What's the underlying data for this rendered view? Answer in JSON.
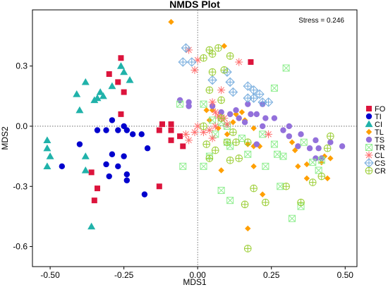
{
  "chart_data": {
    "type": "scatter",
    "title": "NMDS Plot",
    "xlabel": "MDS1",
    "ylabel": "MDS2",
    "annotation": "Stress = 0.246",
    "xlim": [
      -0.56,
      0.54
    ],
    "ylim": [
      -0.7,
      0.58
    ],
    "xticks": [
      -0.5,
      -0.25,
      0.0,
      0.25,
      0.5
    ],
    "xtick_labels": [
      "-0.50",
      "-0.25",
      "0.00",
      "0.25",
      "0.50"
    ],
    "yticks": [
      -0.6,
      -0.3,
      0.0,
      0.3
    ],
    "ytick_labels": [
      "-0.6",
      "-0.3",
      "0.0",
      "0.3"
    ],
    "reference_lines": {
      "x": 0,
      "y": 0,
      "style": "dotted"
    },
    "grid": false,
    "legend_position": "right",
    "series": [
      {
        "name": "FO",
        "color": "#dc143c",
        "marker": "square",
        "points": [
          [
            -0.26,
            0.34
          ],
          [
            0.18,
            0.32
          ],
          [
            -0.3,
            0.26
          ],
          [
            -0.27,
            0.22
          ],
          [
            -0.25,
            0.17
          ],
          [
            -0.26,
            0.06
          ],
          [
            -0.12,
            0.01
          ],
          [
            -0.09,
            0.01
          ],
          [
            -0.13,
            -0.02
          ],
          [
            -0.09,
            -0.02
          ],
          [
            -0.06,
            -0.05
          ],
          [
            -0.09,
            -0.07
          ],
          [
            -0.05,
            -0.1
          ],
          [
            -0.36,
            -0.23
          ],
          [
            -0.34,
            -0.31
          ],
          [
            -0.35,
            -0.37
          ],
          [
            -0.13,
            -0.3
          ]
        ]
      },
      {
        "name": "TI",
        "color": "#0000cd",
        "marker": "circle",
        "points": [
          [
            -0.46,
            -0.2
          ],
          [
            -0.4,
            -0.09
          ],
          [
            -0.34,
            -0.02
          ],
          [
            -0.31,
            -0.02
          ],
          [
            -0.29,
            0.03
          ],
          [
            -0.27,
            -0.02
          ],
          [
            -0.25,
            0.0
          ],
          [
            -0.24,
            -0.02
          ],
          [
            -0.22,
            -0.04
          ],
          [
            -0.19,
            -0.04
          ],
          [
            -0.17,
            -0.11
          ],
          [
            -0.29,
            -0.14
          ],
          [
            -0.25,
            -0.15
          ],
          [
            -0.31,
            -0.19
          ],
          [
            -0.27,
            -0.2
          ],
          [
            -0.24,
            -0.24
          ],
          [
            -0.3,
            -0.25
          ],
          [
            -0.24,
            -0.27
          ],
          [
            -0.18,
            -0.34
          ]
        ]
      },
      {
        "name": "CI",
        "color": "#20b2aa",
        "marker": "triangle",
        "points": [
          [
            -0.26,
            0.3
          ],
          [
            -0.25,
            0.27
          ],
          [
            -0.23,
            0.23
          ],
          [
            -0.38,
            0.22
          ],
          [
            -0.29,
            0.2
          ],
          [
            -0.33,
            0.17
          ],
          [
            -0.41,
            0.16
          ],
          [
            -0.35,
            0.13
          ],
          [
            -0.32,
            0.15
          ],
          [
            -0.34,
            0.14
          ],
          [
            -0.4,
            0.08
          ],
          [
            -0.51,
            -0.07
          ],
          [
            -0.51,
            -0.11
          ],
          [
            -0.5,
            -0.15
          ],
          [
            -0.38,
            -0.15
          ],
          [
            -0.51,
            -0.2
          ],
          [
            -0.38,
            -0.22
          ],
          [
            -0.36,
            -0.5
          ]
        ]
      },
      {
        "name": "TL",
        "color": "#ff9f00",
        "marker": "diamond",
        "points": [
          [
            -0.09,
            0.52
          ],
          [
            0.03,
            0.08
          ],
          [
            0.05,
            0.08
          ],
          [
            0.13,
            0.06
          ],
          [
            0.15,
            0.07
          ],
          [
            0.16,
            0.03
          ],
          [
            0.12,
            0.02
          ],
          [
            0.19,
            -0.01
          ],
          [
            0.04,
            0.03
          ],
          [
            0.07,
            -0.01
          ],
          [
            0.1,
            -0.04
          ],
          [
            0.17,
            -0.09
          ],
          [
            0.19,
            -0.1
          ],
          [
            0.21,
            -0.1
          ],
          [
            0.19,
            -0.2
          ],
          [
            0.32,
            -0.08
          ],
          [
            0.33,
            -0.12
          ],
          [
            0.34,
            -0.2
          ],
          [
            0.37,
            -0.19
          ],
          [
            0.42,
            -0.18
          ],
          [
            0.43,
            -0.15
          ],
          [
            0.45,
            -0.16
          ],
          [
            0.37,
            -0.26
          ],
          [
            0.44,
            -0.26
          ],
          [
            0.09,
            0.4
          ],
          [
            0.17,
            -0.51
          ],
          [
            0.08,
            -0.22
          ],
          [
            0.22,
            -0.34
          ]
        ]
      },
      {
        "name": "TS",
        "color": "#9370db",
        "marker": "circle",
        "points": [
          [
            -0.06,
            0.13
          ],
          [
            -0.03,
            0.12
          ],
          [
            -0.03,
            0.1
          ],
          [
            0.05,
            0.1
          ],
          [
            0.08,
            0.07
          ],
          [
            0.11,
            0.06
          ],
          [
            0.16,
            0.02
          ],
          [
            0.13,
            0.08
          ],
          [
            0.18,
            0.06
          ],
          [
            0.17,
            0.11
          ],
          [
            0.2,
            0.06
          ],
          [
            0.22,
            0.11
          ],
          [
            0.23,
            0.04
          ],
          [
            0.26,
            0.04
          ],
          [
            0.22,
            0.0
          ],
          [
            0.31,
            0.0
          ],
          [
            0.29,
            -0.02
          ],
          [
            0.31,
            -0.05
          ],
          [
            0.35,
            -0.04
          ],
          [
            0.34,
            -0.1
          ],
          [
            0.38,
            -0.11
          ],
          [
            0.4,
            -0.07
          ],
          [
            0.41,
            -0.11
          ],
          [
            0.49,
            -0.1
          ],
          [
            0.4,
            -0.16
          ],
          [
            0.42,
            -0.16
          ],
          [
            0.45,
            -0.08
          ],
          [
            0.2,
            -0.09
          ],
          [
            0.14,
            0.04
          ]
        ]
      },
      {
        "name": "TR",
        "color": "#90ee90",
        "marker": "boxx",
        "points": [
          [
            0.3,
            0.29
          ],
          [
            0.26,
            0.19
          ],
          [
            -0.06,
            0.11
          ],
          [
            0.02,
            0.11
          ],
          [
            0.05,
            0.03
          ],
          [
            0.08,
            0.02
          ],
          [
            0.1,
            0.0
          ],
          [
            0.06,
            -0.04
          ],
          [
            0.1,
            -0.08
          ],
          [
            0.11,
            -0.1
          ],
          [
            0.15,
            -0.06
          ],
          [
            0.22,
            -0.04
          ],
          [
            0.26,
            -0.09
          ],
          [
            0.23,
            -0.2
          ],
          [
            0.27,
            -0.14
          ],
          [
            0.29,
            -0.15
          ],
          [
            0.36,
            -0.08
          ],
          [
            0.39,
            -0.18
          ],
          [
            0.41,
            -0.22
          ],
          [
            0.42,
            -0.17
          ],
          [
            0.28,
            -0.3
          ],
          [
            0.35,
            -0.4
          ],
          [
            0.32,
            -0.46
          ],
          [
            0.04,
            -0.15
          ],
          [
            0.02,
            -0.2
          ],
          [
            0.08,
            -0.32
          ],
          [
            0.11,
            -0.37
          ],
          [
            0.17,
            -0.14
          ],
          [
            -0.05,
            -0.2
          ]
        ]
      },
      {
        "name": "CL",
        "color": "#ff6f6f",
        "marker": "star",
        "points": [
          [
            -0.03,
            0.38
          ],
          [
            0.0,
            0.33
          ],
          [
            -0.01,
            0.28
          ],
          [
            0.14,
            0.32
          ],
          [
            0.08,
            0.18
          ],
          [
            0.05,
            0.12
          ],
          [
            0.07,
            0.05
          ],
          [
            0.08,
            0.04
          ],
          [
            0.09,
            0.04
          ],
          [
            0.1,
            0.01
          ],
          [
            0.06,
            0.0
          ],
          [
            0.04,
            -0.02
          ],
          [
            0.02,
            -0.03
          ],
          [
            -0.01,
            -0.03
          ],
          [
            -0.04,
            -0.04
          ],
          [
            -0.03,
            -0.07
          ],
          [
            0.05,
            -0.06
          ],
          [
            0.24,
            -0.04
          ],
          [
            0.0,
            0.0
          ],
          [
            0.06,
            0.07
          ]
        ]
      },
      {
        "name": "CS",
        "color": "#6fa8dc",
        "marker": "circleplus_blue",
        "points": [
          [
            -0.04,
            0.39
          ],
          [
            -0.05,
            0.32
          ],
          [
            -0.02,
            0.32
          ],
          [
            0.05,
            0.23
          ],
          [
            0.1,
            0.27
          ],
          [
            0.11,
            0.22
          ],
          [
            0.12,
            0.17
          ],
          [
            0.17,
            0.2
          ],
          [
            0.17,
            0.14
          ],
          [
            0.19,
            0.14
          ],
          [
            0.21,
            0.16
          ],
          [
            0.22,
            0.12
          ],
          [
            0.24,
            0.12
          ],
          [
            0.19,
            0.18
          ]
        ]
      },
      {
        "name": "CR",
        "color": "#9acd32",
        "marker": "circleplus",
        "points": [
          [
            0.07,
            0.39
          ],
          [
            0.04,
            0.38
          ],
          [
            0.05,
            0.36
          ],
          [
            0.02,
            0.34
          ],
          [
            0.11,
            0.35
          ],
          [
            0.09,
            0.28
          ],
          [
            0.05,
            0.27
          ],
          [
            0.04,
            0.18
          ],
          [
            0.08,
            0.13
          ],
          [
            0.08,
            0.04
          ],
          [
            0.02,
            0.0
          ],
          [
            0.12,
            -0.03
          ],
          [
            0.13,
            -0.08
          ],
          [
            0.1,
            -0.08
          ],
          [
            0.17,
            -0.08
          ],
          [
            0.03,
            -0.09
          ],
          [
            0.06,
            -0.12
          ],
          [
            0.11,
            -0.17
          ],
          [
            0.04,
            -0.16
          ],
          [
            0.14,
            -0.16
          ],
          [
            0.19,
            -0.31
          ],
          [
            0.16,
            -0.39
          ],
          [
            0.17,
            -0.61
          ],
          [
            0.23,
            -0.38
          ],
          [
            0.3,
            -0.3
          ],
          [
            0.35,
            -0.38
          ],
          [
            0.39,
            -0.28
          ],
          [
            0.42,
            -0.25
          ],
          [
            0.44,
            -0.11
          ],
          [
            0.45,
            -0.05
          ]
        ]
      }
    ]
  }
}
